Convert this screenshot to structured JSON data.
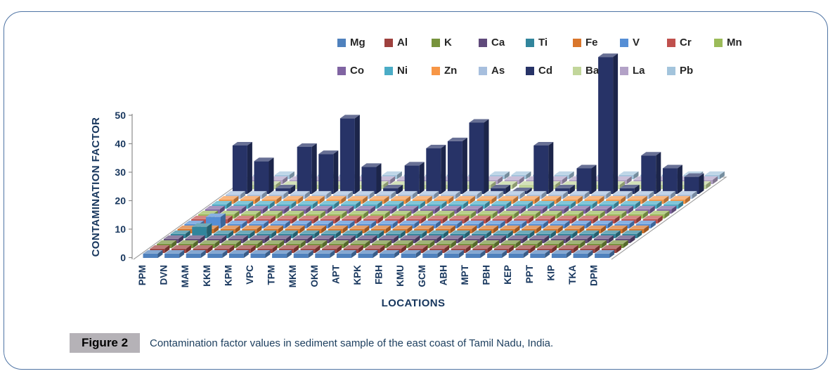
{
  "figure": {
    "label": "Figure 2",
    "caption": "Contamination factor values in sediment sample of the east coast of Tamil Nadu, India."
  },
  "chart_data": {
    "type": "bar",
    "projection": "3d-column",
    "title": "",
    "xlabel": "LOCATIONS",
    "ylabel": "CONTAMINATION FACTOR",
    "ylim": [
      0,
      50
    ],
    "yticks": [
      0,
      10,
      20,
      30,
      40,
      50
    ],
    "grid": "off",
    "legend_position": "top-two-rows",
    "legend_split": 9,
    "categories": [
      "PPM",
      "DVN",
      "MAM",
      "KKM",
      "KPM",
      "VPC",
      "TPM",
      "MKM",
      "OKM",
      "APT",
      "KPK",
      "FBH",
      "KMU",
      "GCM",
      "ABH",
      "MPT",
      "PBH",
      "KEP",
      "PPT",
      "KIP",
      "TKA",
      "DPM"
    ],
    "values_note": "values estimated from 3-D projection; most series are flat (~1.5); Cd dominates",
    "series": [
      {
        "name": "Mg",
        "color": "#4F81BD",
        "values": [
          1.5,
          1.5,
          1.5,
          1.5,
          1.5,
          1.5,
          1.5,
          1.5,
          1.5,
          1.5,
          1.5,
          1.5,
          1.5,
          1.5,
          1.5,
          1.5,
          1.5,
          1.5,
          1.5,
          1.5,
          1.5,
          1.5
        ]
      },
      {
        "name": "Al",
        "color": "#9E413E",
        "values": [
          1.5,
          1.5,
          1.5,
          1.5,
          1.5,
          1.5,
          1.5,
          1.5,
          1.5,
          1.5,
          1.5,
          1.5,
          1.5,
          1.5,
          1.5,
          1.5,
          1.5,
          1.5,
          1.5,
          1.5,
          1.5,
          1.5
        ]
      },
      {
        "name": "K",
        "color": "#77933C",
        "values": [
          1.5,
          1.5,
          1.5,
          1.5,
          1.5,
          1.5,
          1.5,
          1.5,
          1.5,
          1.5,
          1.5,
          1.5,
          1.5,
          1.5,
          1.5,
          1.5,
          1.5,
          1.5,
          1.5,
          1.5,
          1.5,
          1.5
        ]
      },
      {
        "name": "Ca",
        "color": "#604A7B",
        "values": [
          1.5,
          1.5,
          1.5,
          1.5,
          1.5,
          1.5,
          1.5,
          1.5,
          1.5,
          1.5,
          1.5,
          1.5,
          1.5,
          1.5,
          1.5,
          1.5,
          1.5,
          1.5,
          1.5,
          1.5,
          1.5,
          1.5
        ]
      },
      {
        "name": "Ti",
        "color": "#31859C",
        "values": [
          1.5,
          4,
          1.5,
          1.5,
          1.5,
          1.5,
          1.5,
          1.5,
          1.5,
          1.5,
          1.5,
          1.5,
          1.5,
          1.5,
          1.5,
          1.5,
          1.5,
          1.5,
          1.5,
          1.5,
          1.5,
          1.5
        ]
      },
      {
        "name": "Fe",
        "color": "#D9762B",
        "values": [
          1.5,
          1.5,
          1.5,
          1.5,
          1.5,
          1.5,
          1.5,
          1.5,
          1.5,
          1.5,
          1.5,
          1.5,
          1.5,
          1.5,
          1.5,
          1.5,
          1.5,
          1.5,
          1.5,
          1.5,
          1.5,
          1.5
        ]
      },
      {
        "name": "V",
        "color": "#558ED5",
        "values": [
          1.5,
          4,
          1.5,
          1.5,
          1.5,
          1.5,
          1.5,
          1.5,
          1.5,
          1.5,
          1.5,
          1.5,
          1.5,
          1.5,
          1.5,
          1.5,
          1.5,
          1.5,
          1.5,
          1.5,
          1.5,
          1.5
        ]
      },
      {
        "name": "Cr",
        "color": "#C0504D",
        "values": [
          1.5,
          1.5,
          1.5,
          1.5,
          1.5,
          1.5,
          1.5,
          1.5,
          1.5,
          1.5,
          1.5,
          1.5,
          1.5,
          1.5,
          1.5,
          1.5,
          1.5,
          1.5,
          1.5,
          1.5,
          1.5,
          1.5
        ]
      },
      {
        "name": "Mn",
        "color": "#9BBB59",
        "values": [
          1.5,
          1.5,
          1.5,
          1.5,
          1.5,
          1.5,
          1.5,
          1.5,
          1.5,
          1.5,
          1.5,
          1.5,
          1.5,
          1.5,
          1.5,
          1.5,
          1.5,
          1.5,
          1.5,
          1.5,
          1.5,
          1.5
        ]
      },
      {
        "name": "Co",
        "color": "#8064A2",
        "values": [
          1.5,
          1.5,
          1.5,
          1.5,
          1.5,
          1.5,
          1.5,
          1.5,
          1.5,
          1.5,
          1.5,
          1.5,
          1.5,
          1.5,
          1.5,
          1.5,
          1.5,
          1.5,
          1.5,
          1.5,
          1.5,
          1.5
        ]
      },
      {
        "name": "Ni",
        "color": "#4BACC6",
        "values": [
          1.5,
          1.5,
          1.5,
          1.5,
          1.5,
          1.5,
          1.5,
          1.5,
          1.5,
          1.5,
          1.5,
          1.5,
          1.5,
          1.5,
          1.5,
          1.5,
          1.5,
          1.5,
          1.5,
          1.5,
          1.5,
          1.5
        ]
      },
      {
        "name": "Zn",
        "color": "#F79646",
        "values": [
          1.5,
          1.5,
          1.5,
          1.5,
          1.5,
          1.5,
          1.5,
          1.5,
          1.5,
          1.5,
          1.5,
          1.5,
          1.5,
          1.5,
          1.5,
          1.5,
          1.5,
          1.5,
          1.5,
          1.5,
          1.5,
          1.5
        ]
      },
      {
        "name": "As",
        "color": "#A7BFDE",
        "values": [
          1.5,
          1.5,
          1.5,
          1.5,
          1.5,
          1.5,
          1.5,
          1.5,
          1.5,
          1.5,
          1.5,
          1.5,
          1.5,
          1.5,
          1.5,
          1.5,
          1.5,
          1.5,
          1.5,
          1.5,
          1.5,
          1.5
        ]
      },
      {
        "name": "Cd",
        "color": "#273367",
        "values": [
          17,
          11.5,
          2,
          16.5,
          14,
          26.5,
          9.5,
          2,
          10,
          16,
          18.5,
          25,
          2,
          1,
          17,
          2,
          9,
          48,
          2,
          13.5,
          9,
          6
        ]
      },
      {
        "name": "Ba",
        "color": "#C2D69B",
        "values": [
          1.5,
          1.5,
          1.5,
          1.5,
          1.5,
          1.5,
          1.5,
          1.5,
          1.5,
          1.5,
          1.5,
          1.5,
          1.5,
          1.5,
          1.5,
          1.5,
          1.5,
          1.5,
          1.5,
          1.5,
          1.5,
          1.5
        ]
      },
      {
        "name": "La",
        "color": "#B3A2C7",
        "values": [
          1.5,
          1.5,
          1.5,
          1.5,
          1.5,
          1.5,
          1.5,
          1.5,
          1.5,
          1.5,
          1.5,
          1.5,
          1.5,
          1.5,
          1.5,
          1.5,
          1.5,
          1.5,
          1.5,
          1.5,
          1.5,
          1.5
        ]
      },
      {
        "name": "Pb",
        "color": "#A3C4DC",
        "values": [
          1.5,
          1.5,
          1.5,
          1.5,
          1.5,
          1.5,
          1.5,
          1.5,
          1.5,
          1.5,
          1.5,
          1.5,
          1.5,
          1.5,
          1.5,
          1.5,
          1.5,
          1.5,
          1.5,
          1.5,
          1.5,
          1.5
        ]
      }
    ]
  }
}
